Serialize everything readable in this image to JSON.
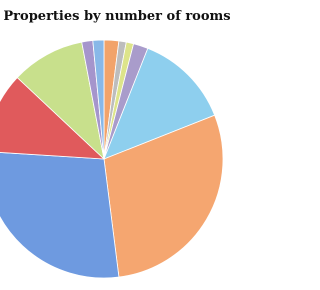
{
  "chart_data": {
    "type": "pie",
    "title": "Properties by number of rooms",
    "categories": [
      null,
      null,
      null,
      null,
      null,
      null,
      null,
      null,
      null,
      null,
      null
    ],
    "values": [
      2,
      1,
      1,
      2,
      13,
      29,
      28,
      11,
      10,
      1.5,
      1.5
    ],
    "colors": [
      "#f2a36a",
      "#bdbdbd",
      "#dde48a",
      "#a99ccb",
      "#8ecfee",
      "#f5a670",
      "#6e9ae0",
      "#e05a5c",
      "#c8e08c",
      "#a595cc",
      "#88b8e8"
    ]
  }
}
